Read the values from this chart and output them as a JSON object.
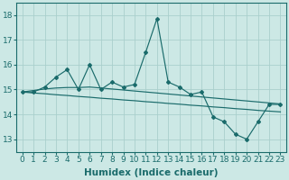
{
  "xlabel": "Humidex (Indice chaleur)",
  "x_values": [
    0,
    1,
    2,
    3,
    4,
    5,
    6,
    7,
    8,
    9,
    10,
    11,
    12,
    13,
    14,
    15,
    16,
    17,
    18,
    19,
    20,
    21,
    22,
    23
  ],
  "y_main": [
    14.9,
    14.9,
    15.1,
    15.5,
    15.8,
    15.0,
    16.0,
    15.0,
    15.3,
    15.1,
    15.2,
    16.5,
    17.85,
    15.3,
    15.1,
    14.8,
    14.9,
    13.9,
    13.7,
    13.2,
    13.0,
    13.7,
    14.4,
    14.4
  ],
  "trend1": [
    14.9,
    14.96,
    15.02,
    15.06,
    15.08,
    15.08,
    15.1,
    15.06,
    15.02,
    14.98,
    14.94,
    14.9,
    14.86,
    14.82,
    14.78,
    14.74,
    14.7,
    14.66,
    14.62,
    14.58,
    14.54,
    14.5,
    14.46,
    14.42
  ],
  "trend2": [
    14.9,
    14.86,
    14.83,
    14.79,
    14.76,
    14.72,
    14.69,
    14.65,
    14.62,
    14.58,
    14.55,
    14.51,
    14.48,
    14.44,
    14.41,
    14.37,
    14.34,
    14.3,
    14.27,
    14.23,
    14.2,
    14.16,
    14.13,
    14.1
  ],
  "ylim": [
    12.5,
    18.5
  ],
  "yticks": [
    13,
    14,
    15,
    16,
    17,
    18
  ],
  "xlim": [
    -0.5,
    23.5
  ],
  "bg_color": "#cce8e5",
  "grid_color": "#aacfcc",
  "line_color": "#1a6b6b",
  "tick_fontsize": 6.5,
  "label_fontsize": 7.5
}
